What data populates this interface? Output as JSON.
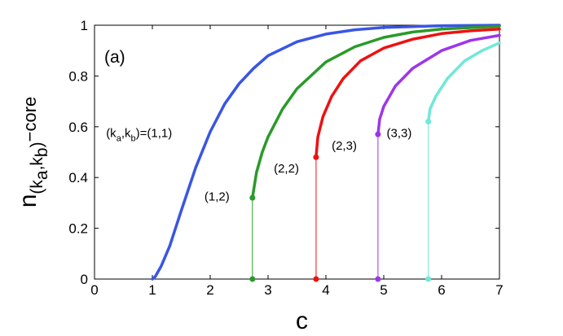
{
  "chart_data": {
    "type": "line",
    "panel_label": "(a)",
    "xlabel": "c",
    "ylabel": {
      "main": "n",
      "sub_open": "(k",
      "sub_a": "a",
      "sep": ",k",
      "sub_b": "b",
      "sub_close": ")",
      "suffix": "−core"
    },
    "xlim": [
      0,
      7
    ],
    "ylim": [
      0,
      1
    ],
    "x_ticks": [
      "0",
      "1",
      "2",
      "3",
      "4",
      "5",
      "6",
      "7"
    ],
    "y_ticks": [
      "0",
      "0.2",
      "0.4",
      "0.6",
      "0.8",
      "1"
    ],
    "grid": false,
    "series": [
      {
        "name": "(1,1)",
        "color": "#3a55e4",
        "jump": null,
        "points": [
          [
            1.0,
            0
          ],
          [
            1.05,
            0.01
          ],
          [
            1.15,
            0.05
          ],
          [
            1.3,
            0.13
          ],
          [
            1.5,
            0.27
          ],
          [
            1.75,
            0.44
          ],
          [
            2.0,
            0.58
          ],
          [
            2.25,
            0.69
          ],
          [
            2.5,
            0.77
          ],
          [
            2.75,
            0.83
          ],
          [
            3.0,
            0.88
          ],
          [
            3.5,
            0.935
          ],
          [
            4.0,
            0.965
          ],
          [
            4.5,
            0.982
          ],
          [
            5.0,
            0.991
          ],
          [
            6.0,
            0.998
          ],
          [
            7.0,
            1.0
          ]
        ]
      },
      {
        "name": "(1,2)",
        "color": "#2a9a2a",
        "jump": 2.73,
        "points": [
          [
            2.73,
            0.32
          ],
          [
            2.8,
            0.42
          ],
          [
            2.9,
            0.5
          ],
          [
            3.0,
            0.56
          ],
          [
            3.25,
            0.67
          ],
          [
            3.5,
            0.75
          ],
          [
            4.0,
            0.855
          ],
          [
            4.5,
            0.915
          ],
          [
            5.0,
            0.952
          ],
          [
            5.5,
            0.973
          ],
          [
            6.0,
            0.985
          ],
          [
            7.0,
            0.996
          ]
        ]
      },
      {
        "name": "(2,2)",
        "color": "#ee1111",
        "jump": 3.83,
        "points": [
          [
            3.83,
            0.48
          ],
          [
            3.86,
            0.56
          ],
          [
            3.95,
            0.64
          ],
          [
            4.1,
            0.72
          ],
          [
            4.3,
            0.79
          ],
          [
            4.6,
            0.86
          ],
          [
            5.0,
            0.91
          ],
          [
            5.5,
            0.945
          ],
          [
            6.0,
            0.967
          ],
          [
            6.5,
            0.978
          ],
          [
            7.0,
            0.985
          ]
        ]
      },
      {
        "name": "(2,3)",
        "color": "#9d36ea",
        "jump": 4.9,
        "points": [
          [
            4.9,
            0.57
          ],
          [
            4.93,
            0.63
          ],
          [
            5.0,
            0.68
          ],
          [
            5.2,
            0.76
          ],
          [
            5.5,
            0.83
          ],
          [
            6.0,
            0.9
          ],
          [
            6.5,
            0.94
          ],
          [
            7.0,
            0.96
          ]
        ]
      },
      {
        "name": "(3,3)",
        "color": "#6fe8d8",
        "jump": 5.77,
        "points": [
          [
            5.77,
            0.62
          ],
          [
            5.8,
            0.67
          ],
          [
            5.9,
            0.72
          ],
          [
            6.1,
            0.79
          ],
          [
            6.4,
            0.86
          ],
          [
            6.7,
            0.9
          ],
          [
            7.0,
            0.93
          ]
        ]
      }
    ],
    "annotations": [
      {
        "kind": "k",
        "pre": "(k",
        "sub1": "a",
        "mid": ",k",
        "sub2": "b",
        "post": ")=(1,1)",
        "x": 0.2,
        "y": 0.56
      },
      {
        "kind": "plain",
        "text": "(1,2)",
        "x": 1.9,
        "y": 0.31
      },
      {
        "kind": "plain",
        "text": "(2,2)",
        "x": 3.1,
        "y": 0.42
      },
      {
        "kind": "plain",
        "text": "(2,3)",
        "x": 4.1,
        "y": 0.51
      },
      {
        "kind": "plain",
        "text": "(3,3)",
        "x": 5.05,
        "y": 0.56
      }
    ]
  }
}
